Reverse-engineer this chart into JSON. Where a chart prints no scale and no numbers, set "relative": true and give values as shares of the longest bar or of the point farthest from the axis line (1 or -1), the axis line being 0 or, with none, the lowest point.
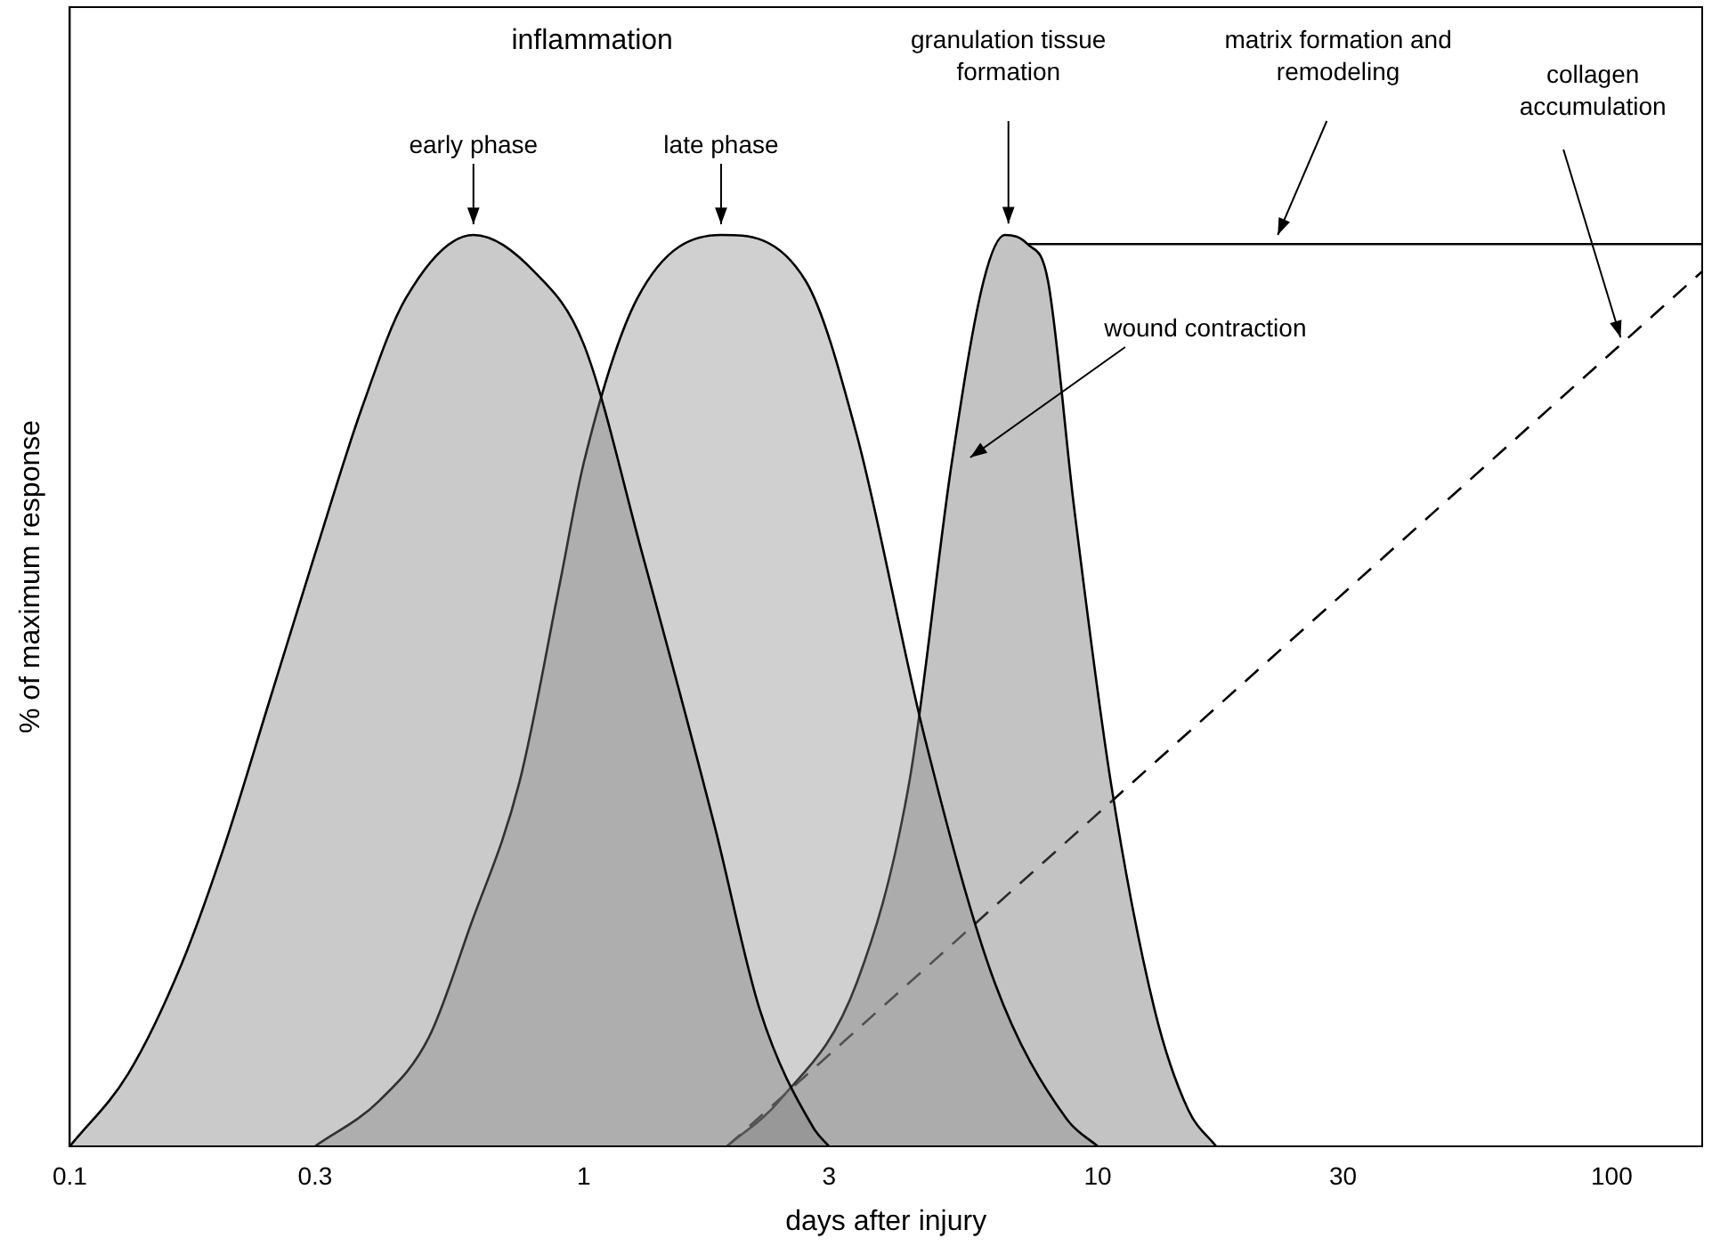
{
  "chart_data": {
    "type": "area",
    "relative": true,
    "log": "x",
    "xlabel": "days after injury",
    "ylabel": "% of maximum response",
    "xlim": [
      0.1,
      150
    ],
    "xticks": [
      0.1,
      0.3,
      1,
      3,
      10,
      30,
      100
    ],
    "grid": false,
    "legend": false,
    "series": [
      {
        "color": "#7a7a7a",
        "x": [
          0.1,
          0.13,
          0.165,
          0.2,
          0.245,
          0.3,
          0.37,
          0.45,
          0.61,
          0.8,
          1.0,
          1.3,
          1.8,
          2.2,
          2.8,
          3.0
        ],
        "values": [
          0,
          0.08,
          0.2,
          0.33,
          0.49,
          0.65,
          0.81,
          0.93,
          1,
          0.96,
          0.88,
          0.65,
          0.35,
          0.15,
          0.02,
          0
        ]
      },
      {
        "color": "#8a8a8a",
        "x": [
          0.3,
          0.4,
          0.5,
          0.6,
          0.75,
          0.9,
          1.0,
          1.27,
          1.85,
          2.7,
          3.4,
          4.6,
          6.3,
          8.7,
          10
        ],
        "values": [
          0,
          0.05,
          0.12,
          0.24,
          0.4,
          0.62,
          0.75,
          0.93,
          1,
          0.95,
          0.78,
          0.45,
          0.18,
          0.03,
          0
        ]
      },
      {
        "color": "#6a6a6a",
        "x": [
          1.9,
          2.4,
          3.4,
          4.3,
          5.2,
          6.0,
          6.6,
          7.3,
          8,
          9,
          10.6,
          12.9,
          15,
          17
        ],
        "values": [
          0,
          0.05,
          0.18,
          0.4,
          0.75,
          0.95,
          1,
          0.99,
          0.95,
          0.7,
          0.4,
          0.15,
          0.04,
          0
        ]
      },
      {
        "type": "line",
        "color": "#000000",
        "x": [
          7.3,
          150
        ],
        "values": [
          0.99,
          0.99
        ]
      },
      {
        "type": "line",
        "line_style": "dashed",
        "color": "#000000",
        "x": [
          1.9,
          150
        ],
        "values": [
          0,
          0.96
        ]
      }
    ],
    "annotations": [
      "inflammation",
      {
        "text": "early phase",
        "x": 0.61,
        "y": 1
      },
      {
        "text": "late phase",
        "x": 1.85,
        "y": 1
      },
      "granulation tissue formation",
      "matrix formation and remodeling",
      {
        "text": "wound contraction",
        "x": 5.3,
        "y": 0.75
      },
      "collagen accumulation"
    ]
  }
}
